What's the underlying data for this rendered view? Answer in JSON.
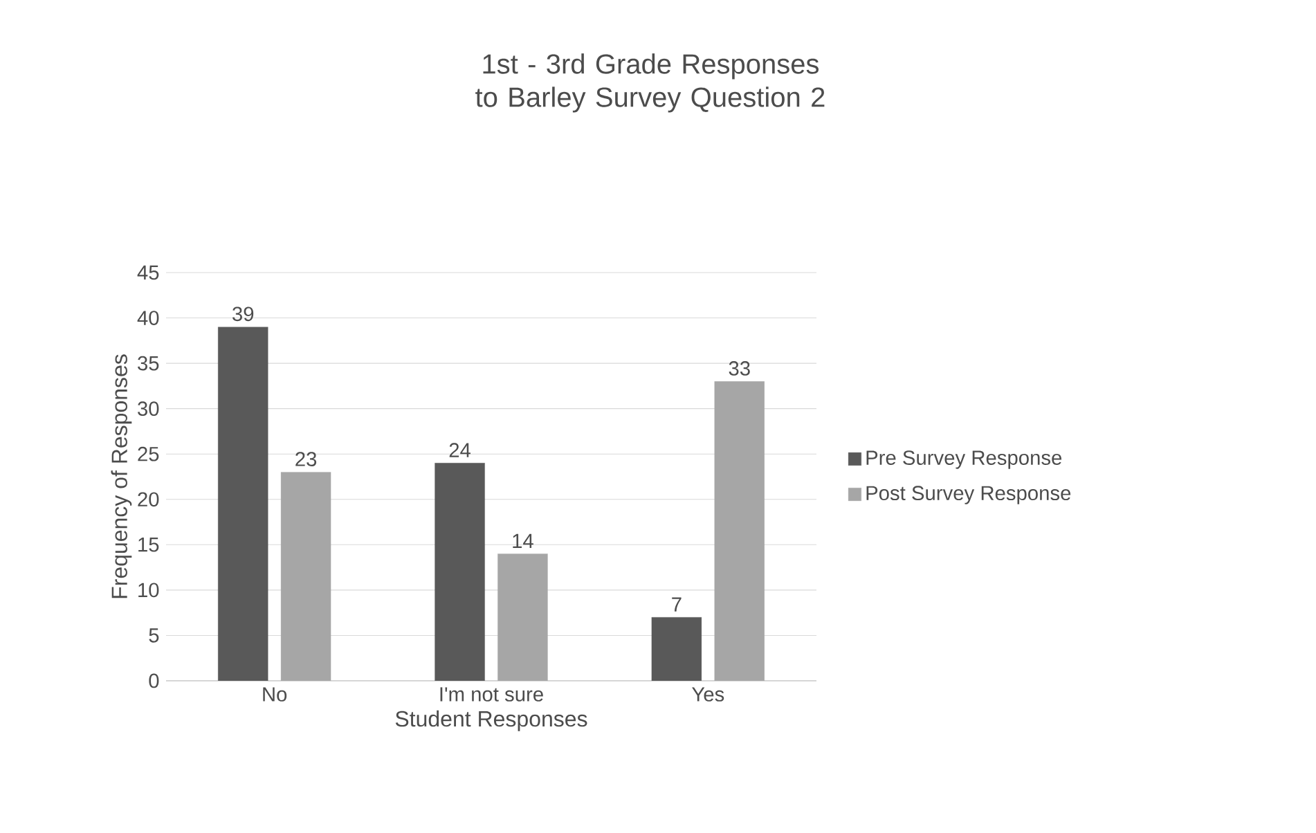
{
  "chart_data": {
    "type": "bar",
    "title": "1st - 3rd Grade Responses to Barley Survey Question 2",
    "xlabel": "Student Responses",
    "ylabel": "Frequency of Responses",
    "categories": [
      "No",
      "I'm not sure",
      "Yes"
    ],
    "series": [
      {
        "name": "Pre Survey Response",
        "color": "#595959",
        "values": [
          39,
          24,
          7
        ]
      },
      {
        "name": "Post Survey Response",
        "color": "#a6a6a6",
        "values": [
          23,
          14,
          33
        ]
      }
    ],
    "ylim": [
      0,
      45
    ],
    "yticks": [
      0,
      5,
      10,
      15,
      20,
      25,
      30,
      35,
      40,
      45
    ],
    "grid": "y",
    "legend": "right",
    "data_labels": true
  }
}
